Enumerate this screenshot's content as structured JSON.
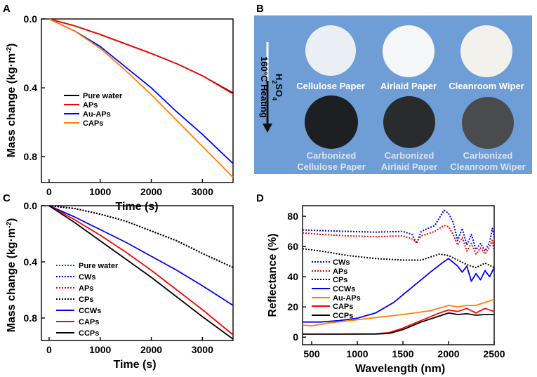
{
  "chart_data": [
    {
      "panel": "A",
      "type": "line",
      "xlabel": "Time (s)",
      "ylabel": "Mass change (kg·m",
      "ylabel_sup": "-2",
      "ylabel_close": ")",
      "xlim": [
        -150,
        3600
      ],
      "ylim": [
        0,
        0.95
      ],
      "y_inverted": true,
      "xticks": [
        0,
        1000,
        2000,
        3000
      ],
      "yticks": [
        0.0,
        0.4,
        0.8
      ],
      "ytick_labels": [
        "0.0",
        "0.4",
        "0.8"
      ],
      "series": [
        {
          "name": "Pure water",
          "color": "#000000",
          "style": "solid",
          "x": [
            0,
            500,
            1000,
            1500,
            2000,
            2500,
            3000,
            3600
          ],
          "y": [
            0,
            0.04,
            0.09,
            0.145,
            0.2,
            0.26,
            0.33,
            0.43
          ]
        },
        {
          "name": "APs",
          "color": "#ff0000",
          "style": "solid",
          "x": [
            0,
            500,
            1000,
            1500,
            2000,
            2500,
            3000,
            3600
          ],
          "y": [
            0,
            0.04,
            0.09,
            0.145,
            0.2,
            0.26,
            0.33,
            0.435
          ]
        },
        {
          "name": "Au-APs",
          "color": "#0000ff",
          "style": "solid",
          "x": [
            0,
            500,
            1000,
            1500,
            2000,
            2500,
            3000,
            3600
          ],
          "y": [
            0,
            0.07,
            0.16,
            0.28,
            0.4,
            0.54,
            0.67,
            0.84
          ]
        },
        {
          "name": "CAPs",
          "color": "#ff7f00",
          "style": "solid",
          "x": [
            0,
            500,
            1000,
            1500,
            2000,
            2500,
            3000,
            3600
          ],
          "y": [
            0,
            0.07,
            0.17,
            0.3,
            0.44,
            0.59,
            0.74,
            0.92
          ]
        }
      ]
    },
    {
      "panel": "C",
      "type": "line",
      "xlabel": "Time (s)",
      "ylabel": "Mass change (kg·m",
      "ylabel_sup": "-2",
      "ylabel_close": ")",
      "xlim": [
        -150,
        3600
      ],
      "ylim": [
        0,
        0.96
      ],
      "y_inverted": true,
      "xticks": [
        0,
        1000,
        2000,
        3000
      ],
      "yticks": [
        0.0,
        0.4,
        0.8
      ],
      "ytick_labels": [
        "0.0",
        "0.4",
        "0.8"
      ],
      "series": [
        {
          "name": "Pure water",
          "color": "#008000",
          "style": "dotted",
          "x": [
            0,
            500,
            1000,
            1500,
            2000,
            2500,
            3000,
            3600
          ],
          "y": [
            0,
            0.02,
            0.06,
            0.11,
            0.18,
            0.25,
            0.34,
            0.44
          ]
        },
        {
          "name": "CWs",
          "color": "#0000ff",
          "style": "dotted",
          "x": [
            0,
            500,
            1000,
            1500,
            2000,
            2500,
            3000,
            3600
          ],
          "y": [
            0,
            0.02,
            0.06,
            0.11,
            0.18,
            0.25,
            0.34,
            0.44
          ]
        },
        {
          "name": "APs",
          "color": "#ff0000",
          "style": "dotted",
          "x": [
            0,
            500,
            1000,
            1500,
            2000,
            2500,
            3000,
            3600
          ],
          "y": [
            0,
            0.02,
            0.06,
            0.11,
            0.18,
            0.25,
            0.34,
            0.44
          ]
        },
        {
          "name": "CPs",
          "color": "#000000",
          "style": "dotted",
          "x": [
            0,
            500,
            1000,
            1500,
            2000,
            2500,
            3000,
            3600
          ],
          "y": [
            0,
            0.02,
            0.06,
            0.11,
            0.18,
            0.25,
            0.34,
            0.44
          ]
        },
        {
          "name": "CCWs",
          "color": "#0000ff",
          "style": "solid",
          "x": [
            0,
            500,
            1000,
            1500,
            2000,
            2500,
            3000,
            3600
          ],
          "y": [
            0,
            0.08,
            0.17,
            0.26,
            0.36,
            0.46,
            0.57,
            0.71
          ]
        },
        {
          "name": "CAPs",
          "color": "#ff0000",
          "style": "solid",
          "x": [
            0,
            500,
            1000,
            1500,
            2000,
            2500,
            3000,
            3600
          ],
          "y": [
            0,
            0.1,
            0.21,
            0.33,
            0.46,
            0.6,
            0.74,
            0.92
          ]
        },
        {
          "name": "CCPs",
          "color": "#000000",
          "style": "solid",
          "x": [
            0,
            500,
            1000,
            1500,
            2000,
            2500,
            3000,
            3600
          ],
          "y": [
            0,
            0.12,
            0.25,
            0.38,
            0.51,
            0.65,
            0.79,
            0.95
          ]
        }
      ]
    },
    {
      "panel": "D",
      "type": "line",
      "xlabel": "Wavelength (nm)",
      "ylabel": "Reflectance (%)",
      "xlim": [
        400,
        2500
      ],
      "ylim": [
        -5,
        87
      ],
      "xticks": [
        500,
        1000,
        1500,
        2000,
        2500
      ],
      "yticks": [
        0,
        20,
        40,
        60,
        80
      ],
      "series": [
        {
          "name": "CWs",
          "color": "#0000ff",
          "style": "dotted",
          "x": [
            400,
            600,
            900,
            1200,
            1500,
            1600,
            1650,
            1700,
            1850,
            1950,
            2000,
            2050,
            2100,
            2150,
            2200,
            2250,
            2300,
            2350,
            2400,
            2450,
            2480,
            2500
          ],
          "y": [
            71,
            70.5,
            70,
            69.5,
            70,
            68,
            62,
            70,
            74,
            84,
            82,
            76,
            64,
            72,
            61,
            68,
            58,
            62,
            57,
            63,
            72,
            66
          ]
        },
        {
          "name": "APs",
          "color": "#ff0000",
          "style": "dotted",
          "x": [
            400,
            600,
            900,
            1200,
            1500,
            1600,
            1650,
            1700,
            1850,
            1950,
            2000,
            2050,
            2100,
            2150,
            2200,
            2250,
            2300,
            2350,
            2400,
            2450,
            2480,
            2500
          ],
          "y": [
            69,
            68,
            67,
            66.5,
            67,
            65,
            63,
            67,
            70,
            74,
            73,
            68,
            61,
            66,
            57,
            62,
            55,
            59,
            55,
            60,
            64,
            56
          ]
        },
        {
          "name": "CPs",
          "color": "#000000",
          "style": "dotted",
          "x": [
            400,
            600,
            900,
            1200,
            1500,
            1700,
            1900,
            2000,
            2100,
            2200,
            2300,
            2400,
            2500
          ],
          "y": [
            58.5,
            57,
            54,
            52,
            51,
            51,
            55,
            54,
            51,
            48,
            46,
            49,
            46
          ]
        },
        {
          "name": "CCWs",
          "color": "#0000ff",
          "style": "solid",
          "x": [
            400,
            600,
            800,
            1000,
            1200,
            1400,
            1600,
            1800,
            1950,
            2000,
            2100,
            2150,
            2200,
            2250,
            2300,
            2350,
            2400,
            2450,
            2500
          ],
          "y": [
            10,
            10,
            11,
            12.5,
            16,
            23,
            33,
            43,
            50,
            52,
            47,
            43,
            47,
            37,
            42,
            38,
            44,
            40,
            46
          ]
        },
        {
          "name": "Au-APs",
          "color": "#ff7f00",
          "style": "solid",
          "x": [
            400,
            500,
            700,
            1000,
            1200,
            1500,
            1800,
            2000,
            2100,
            2200,
            2300,
            2400,
            2500
          ],
          "y": [
            8,
            7.5,
            9.5,
            11.5,
            13,
            15,
            17.5,
            21,
            20,
            21,
            21,
            23,
            25
          ]
        },
        {
          "name": "CAPs",
          "color": "#ff0000",
          "style": "solid",
          "x": [
            400,
            800,
            1200,
            1350,
            1500,
            1700,
            1900,
            2000,
            2100,
            2200,
            2300,
            2400,
            2500
          ],
          "y": [
            2,
            2,
            2.2,
            3,
            6,
            11,
            16,
            18,
            17,
            19,
            16,
            19,
            17
          ]
        },
        {
          "name": "CCPs",
          "color": "#000000",
          "style": "solid",
          "x": [
            400,
            800,
            1200,
            1350,
            1500,
            1700,
            1900,
            2000,
            2100,
            2200,
            2300,
            2400,
            2500
          ],
          "y": [
            2,
            2,
            2,
            2.5,
            5,
            10,
            14,
            16,
            15,
            15.5,
            14.5,
            15,
            15
          ]
        }
      ]
    }
  ],
  "panels": {
    "a": "A",
    "b": "B",
    "c": "C",
    "d": "D"
  },
  "photo": {
    "treatment_acid": "H",
    "treatment_acid_sub1": "2",
    "treatment_acid_mid": "SO",
    "treatment_acid_sub2": "4",
    "treatment_heat": "160°C Heating",
    "background_color": "#6fa0d8",
    "top_row": [
      "Cellulose Paper",
      "Airlaid Paper",
      "Cleanroom Wiper"
    ],
    "bottom_row_line1": [
      "Carbonized",
      "Carbonized",
      "Carbonized"
    ],
    "bottom_row_line2": [
      "Cellulose Paper",
      "Airlaid Paper",
      "Cleanroom Wiper"
    ]
  }
}
